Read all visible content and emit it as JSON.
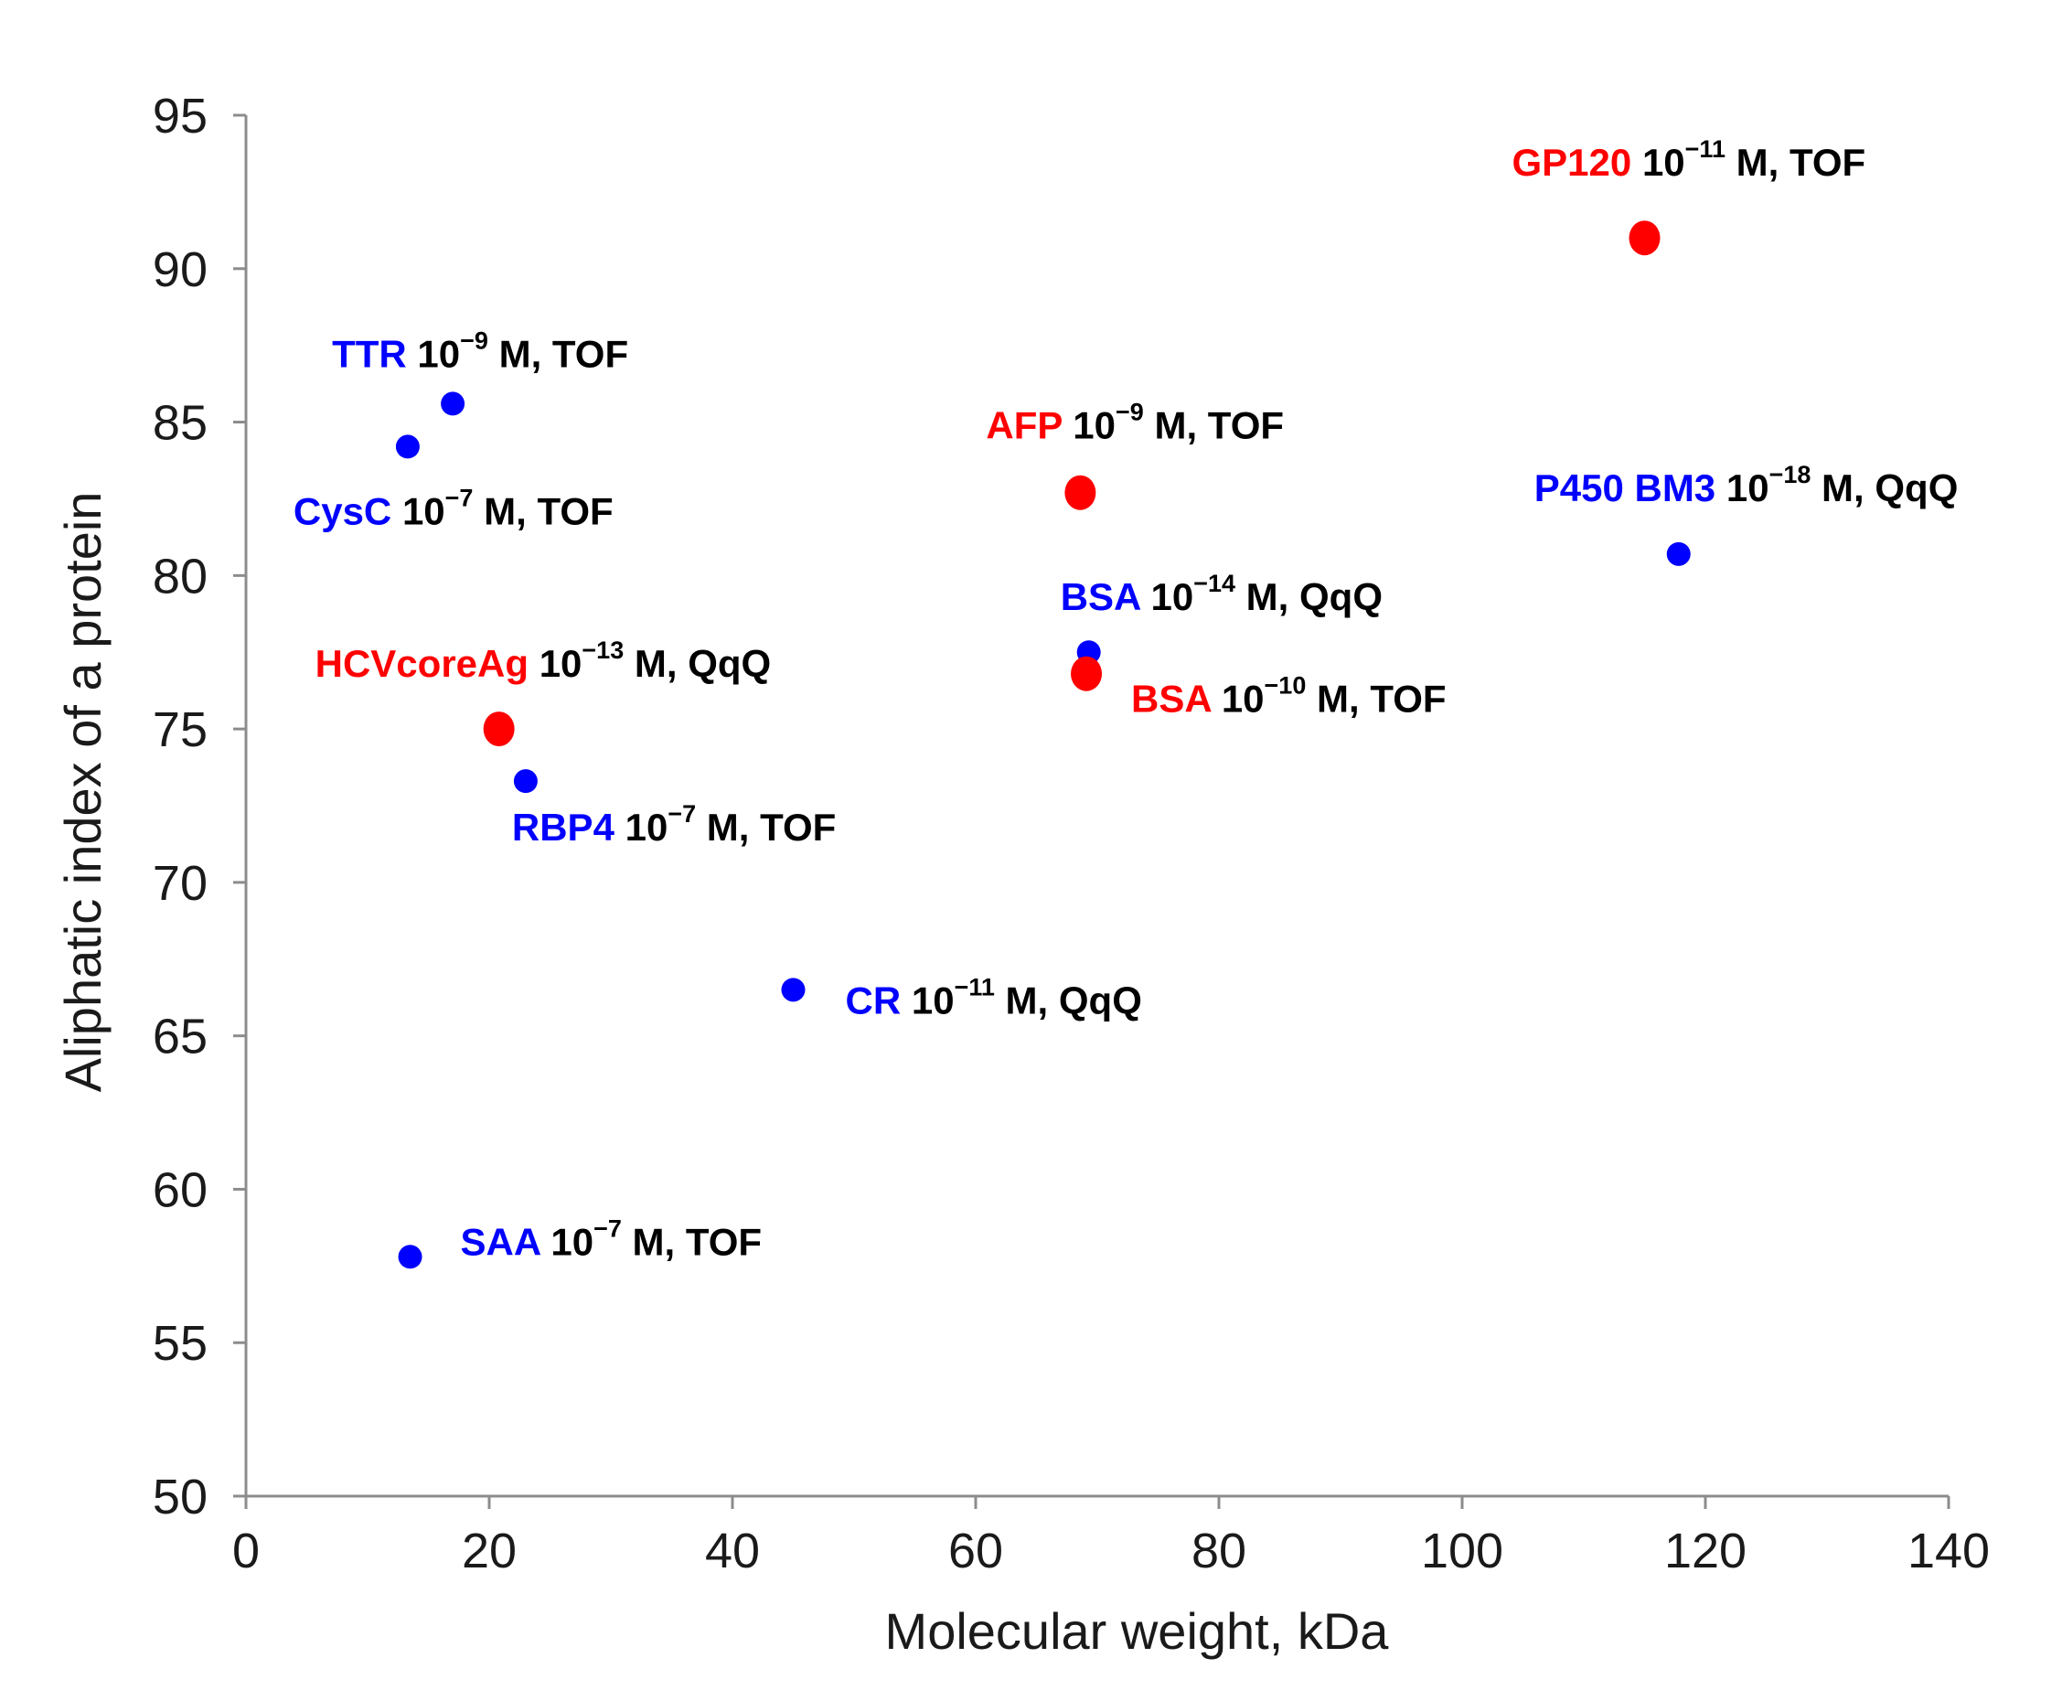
{
  "chart_data": {
    "type": "scatter",
    "title": "",
    "xlabel": "Molecular weight, kDa",
    "ylabel": "Aliphatic index of a protein",
    "xlim": [
      0,
      140
    ],
    "ylim": [
      50,
      95
    ],
    "xticks": [
      "0",
      "20",
      "40",
      "60",
      "80",
      "100",
      "120",
      "140"
    ],
    "yticks": [
      "50",
      "55",
      "60",
      "65",
      "70",
      "75",
      "80",
      "85",
      "90",
      "95"
    ],
    "grid": false,
    "colors": {
      "blue": "#0000ff",
      "red": "#ff0000",
      "text": "#000000",
      "axis": "#8c8c8c"
    },
    "points": [
      {
        "name": "TTR",
        "x": 17.0,
        "y": 85.6,
        "color": "blue",
        "size": "small",
        "exponent": "−9",
        "method": "TOF"
      },
      {
        "name": "CysC",
        "x": 13.3,
        "y": 84.2,
        "color": "blue",
        "size": "small",
        "exponent": "−7",
        "method": "TOF"
      },
      {
        "name": "GP120",
        "x": 115.0,
        "y": 91.0,
        "color": "red",
        "size": "large",
        "exponent": "−11",
        "method": "TOF"
      },
      {
        "name": "AFP",
        "x": 68.6,
        "y": 82.7,
        "color": "red",
        "size": "large",
        "exponent": "−9",
        "method": "TOF"
      },
      {
        "name": "P450 BM3",
        "x": 117.8,
        "y": 80.7,
        "color": "blue",
        "size": "small",
        "exponent": "−18",
        "method": "QqQ"
      },
      {
        "name": "BSA",
        "x": 69.3,
        "y": 77.5,
        "color": "blue",
        "size": "small",
        "exponent": "−14",
        "method": "QqQ"
      },
      {
        "name": "BSA",
        "x": 69.1,
        "y": 76.8,
        "color": "red",
        "size": "large",
        "exponent": "−10",
        "method": "TOF"
      },
      {
        "name": "HCVcoreAg",
        "x": 20.8,
        "y": 75.0,
        "color": "red",
        "size": "large",
        "exponent": "−13",
        "method": "QqQ"
      },
      {
        "name": "RBP4",
        "x": 23.0,
        "y": 73.3,
        "color": "blue",
        "size": "small",
        "exponent": "−7",
        "method": "TOF"
      },
      {
        "name": "CR",
        "x": 45.0,
        "y": 66.5,
        "color": "blue",
        "size": "small",
        "exponent": "−11",
        "method": "QqQ"
      },
      {
        "name": "SAA",
        "x": 13.5,
        "y": 57.8,
        "color": "blue",
        "size": "small",
        "exponent": "−7",
        "method": "TOF"
      }
    ]
  }
}
